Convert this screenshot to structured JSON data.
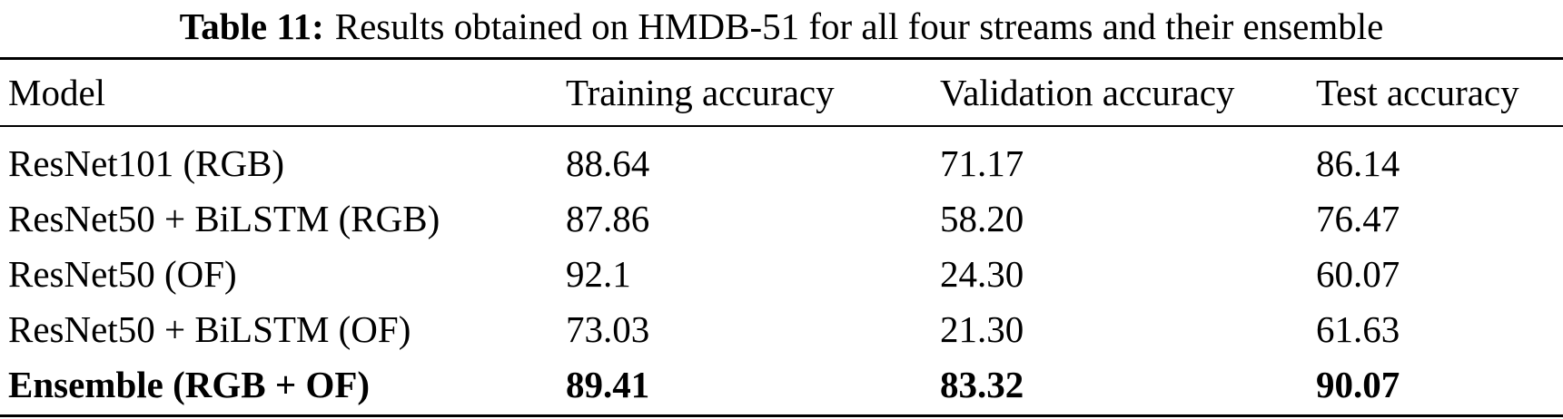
{
  "caption": {
    "label": "Table 11:",
    "text": "Results obtained on HMDB-51 for all four streams and their ensemble"
  },
  "table": {
    "header": [
      "Model",
      "Training accuracy",
      "Validation accuracy",
      "Test accuracy"
    ],
    "rows": [
      [
        "ResNet101 (RGB)",
        "88.64",
        "71.17",
        "86.14"
      ],
      [
        "ResNet50 + BiLSTM (RGB)",
        "87.86",
        "58.20",
        "76.47"
      ],
      [
        "ResNet50 (OF)",
        "92.1",
        "24.30",
        "60.07"
      ],
      [
        "ResNet50 + BiLSTM (OF)",
        "73.03",
        "21.30",
        "61.63"
      ],
      [
        "Ensemble (RGB + OF)",
        "89.41",
        "83.32",
        "90.07"
      ]
    ]
  }
}
